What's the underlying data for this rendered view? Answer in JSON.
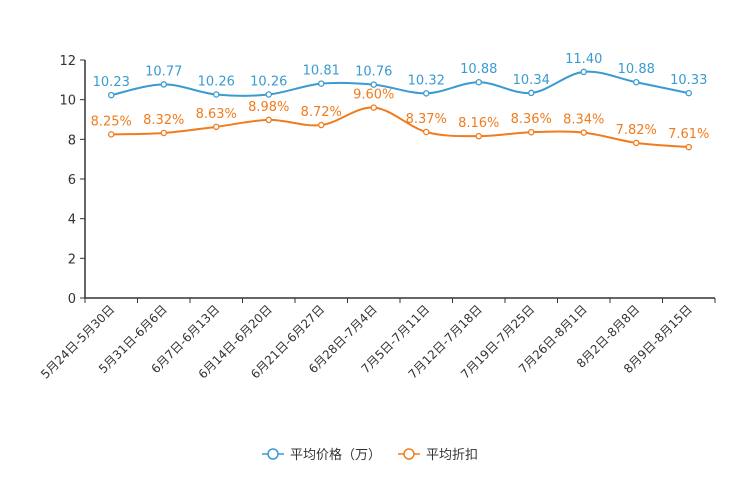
{
  "chart_data": {
    "type": "line",
    "title": "",
    "xlabel": "",
    "ylabel": "",
    "ylim": [
      0,
      12
    ],
    "yticks": [
      0,
      2,
      4,
      6,
      8,
      10,
      12
    ],
    "grid": false,
    "legend_position": "bottom-center",
    "categories": [
      "5月24日-5月30日",
      "5月31日-6月6日",
      "6月7日-6月13日",
      "6月14日-6月20日",
      "6月21日-6月27日",
      "6月28日-7月4日",
      "7月5日-7月11日",
      "7月12日-7月18日",
      "7月19日-7月25日",
      "7月26日-8月1日",
      "8月2日-8月8日",
      "8月9日-8月15日"
    ],
    "series": [
      {
        "name": "平均价格（万）",
        "color": "#3a9bd0",
        "values": [
          10.23,
          10.77,
          10.26,
          10.26,
          10.81,
          10.76,
          10.32,
          10.88,
          10.34,
          11.4,
          10.88,
          10.33
        ],
        "labels": [
          "10.23",
          "10.77",
          "10.26",
          "10.26",
          "10.81",
          "10.76",
          "10.32",
          "10.88",
          "10.34",
          "11.40",
          "10.88",
          "10.33"
        ]
      },
      {
        "name": "平均折扣",
        "color": "#f07c1e",
        "values": [
          8.25,
          8.32,
          8.63,
          8.98,
          8.72,
          9.6,
          8.37,
          8.16,
          8.36,
          8.34,
          7.82,
          7.61
        ],
        "labels": [
          "8.25%",
          "8.32%",
          "8.63%",
          "8.98%",
          "8.72%",
          "9.60%",
          "8.37%",
          "8.16%",
          "8.36%",
          "8.34%",
          "7.82%",
          "7.61%"
        ]
      }
    ]
  }
}
